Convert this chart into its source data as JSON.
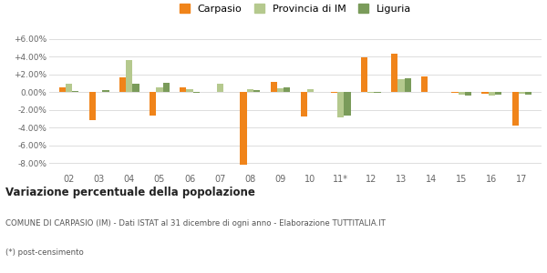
{
  "years": [
    "02",
    "03",
    "04",
    "05",
    "06",
    "07",
    "08",
    "09",
    "10",
    "11*",
    "12",
    "13",
    "14",
    "15",
    "16",
    "17"
  ],
  "carpasio": [
    0.5,
    -3.2,
    1.7,
    -2.6,
    0.5,
    0.0,
    -8.2,
    1.2,
    -2.7,
    -0.1,
    3.9,
    4.3,
    1.8,
    -0.1,
    -0.2,
    -3.8
  ],
  "provincia_im": [
    0.9,
    0.0,
    3.6,
    0.5,
    0.3,
    0.9,
    0.3,
    0.4,
    0.3,
    -2.8,
    -0.1,
    1.5,
    0.0,
    -0.3,
    -0.4,
    -0.2
  ],
  "liguria": [
    0.1,
    0.2,
    0.9,
    1.1,
    -0.1,
    0.0,
    0.2,
    0.5,
    0.0,
    -2.6,
    -0.1,
    1.6,
    0.0,
    -0.4,
    -0.3,
    -0.3
  ],
  "color_carpasio": "#f0841a",
  "color_provincia": "#b5c98e",
  "color_liguria": "#7a9b5a",
  "title": "Variazione percentuale della popolazione",
  "subtitle": "COMUNE DI CARPASIO (IM) - Dati ISTAT al 31 dicembre di ogni anno - Elaborazione TUTTITALIA.IT",
  "footnote": "(*) post-censimento",
  "ylim": [
    -9.0,
    7.0
  ],
  "yticks": [
    -8.0,
    -6.0,
    -4.0,
    -2.0,
    0.0,
    2.0,
    4.0,
    6.0
  ],
  "background_color": "#ffffff",
  "grid_color": "#dddddd"
}
